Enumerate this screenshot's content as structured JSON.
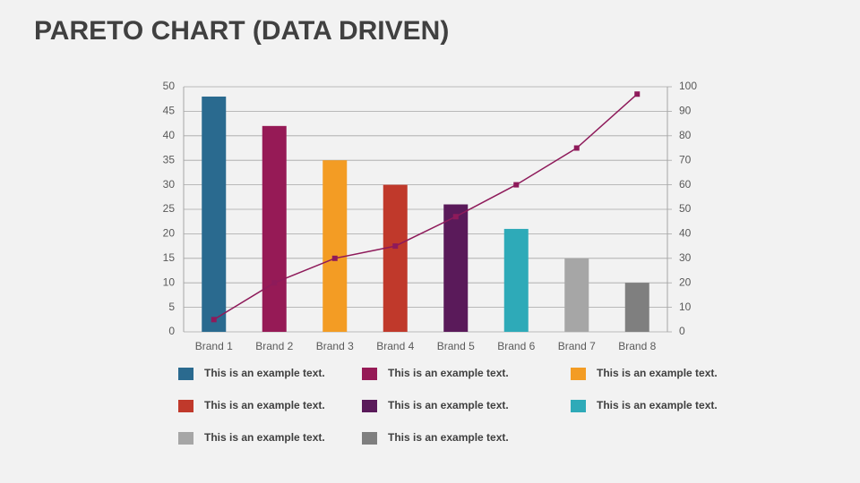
{
  "chart_data": {
    "type": "bar",
    "title": "PARETO CHART (DATA DRIVEN)",
    "categories": [
      "Brand 1",
      "Brand 2",
      "Brand 3",
      "Brand 4",
      "Brand 5",
      "Brand 6",
      "Brand 7",
      "Brand 8"
    ],
    "values": [
      48,
      42,
      35,
      30,
      26,
      21,
      15,
      10
    ],
    "colors": [
      "#2a6a8f",
      "#961a56",
      "#f39c24",
      "#c0392b",
      "#5a1a5a",
      "#2eaab8",
      "#a6a6a6",
      "#7f7f7f"
    ],
    "line": {
      "type": "line",
      "axis": "y2",
      "color": "#8e1a5a",
      "values": [
        5,
        20,
        30,
        35,
        47,
        60,
        75,
        97
      ]
    },
    "ylim": [
      0,
      50
    ],
    "yticks": [
      0,
      5,
      10,
      15,
      20,
      25,
      30,
      35,
      40,
      45,
      50
    ],
    "y2lim": [
      0,
      100
    ],
    "y2ticks": [
      0,
      10,
      20,
      30,
      40,
      50,
      60,
      70,
      80,
      90,
      100
    ],
    "grid": true,
    "legend": [
      "This is an example text.",
      "This is an example text.",
      "This is an example text.",
      "This is an example text.",
      "This is an example text.",
      "This is an example text.",
      "This is an example text.",
      "This is an example text."
    ]
  }
}
